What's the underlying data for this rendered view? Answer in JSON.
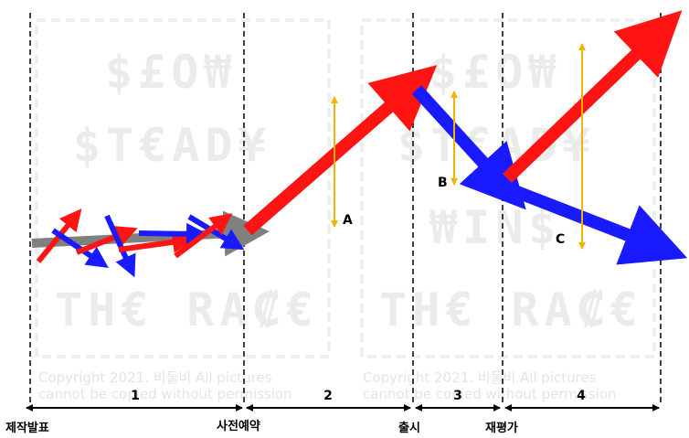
{
  "phases": [
    "1",
    "2",
    "3",
    "4"
  ],
  "milestones": [
    "제작발표",
    "사전예약",
    "출시",
    "재평가"
  ],
  "points": [
    "A",
    "B",
    "C"
  ],
  "colors": {
    "up": "#ff1414",
    "down": "#1a1aff",
    "baseline": "#808080",
    "range": "#f0b400",
    "divider": "#000000"
  },
  "watermark": {
    "lines": [
      "$£O₩",
      "$T€AD¥",
      "₩IN$",
      "TH€ RA₡€"
    ],
    "copyright_1": "Copyright 2021. 비둘비 All pictures",
    "copyright_2": "cannot be copied without permission"
  }
}
